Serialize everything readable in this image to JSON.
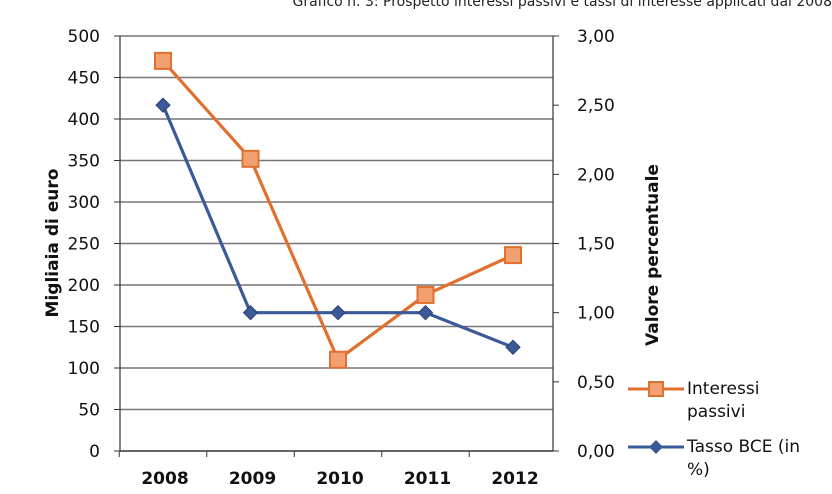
{
  "chart_data": {
    "type": "line",
    "title": "Grafico n. 3: Prospetto interessi passivi e tassi di interesse applicati dal 2008",
    "categories": [
      "2008",
      "2009",
      "2010",
      "2011",
      "2012"
    ],
    "ylabel": "Migliaia di euro",
    "y2label": "Valore percentuale",
    "ylim": [
      0,
      500
    ],
    "y2lim": [
      0,
      3
    ],
    "yticks": [
      "0",
      "50",
      "100",
      "150",
      "200",
      "250",
      "300",
      "350",
      "400",
      "450",
      "500"
    ],
    "y2ticks": [
      "0,00",
      "0,50",
      "1,00",
      "1,50",
      "2,00",
      "2,50",
      "3,00"
    ],
    "grid": true,
    "legend_position": "right",
    "series": [
      {
        "name_lines": [
          "Interessi",
          "passivi"
        ],
        "axis": "left",
        "color": "#e07030",
        "marker": "square",
        "values": [
          470,
          352,
          110,
          188,
          236
        ]
      },
      {
        "name_lines": [
          "Tasso BCE (in",
          "%)"
        ],
        "axis": "right",
        "color": "#3a5a9a",
        "marker": "diamond",
        "values": [
          2.5,
          1.0,
          1.0,
          1.0,
          0.75
        ]
      }
    ]
  }
}
